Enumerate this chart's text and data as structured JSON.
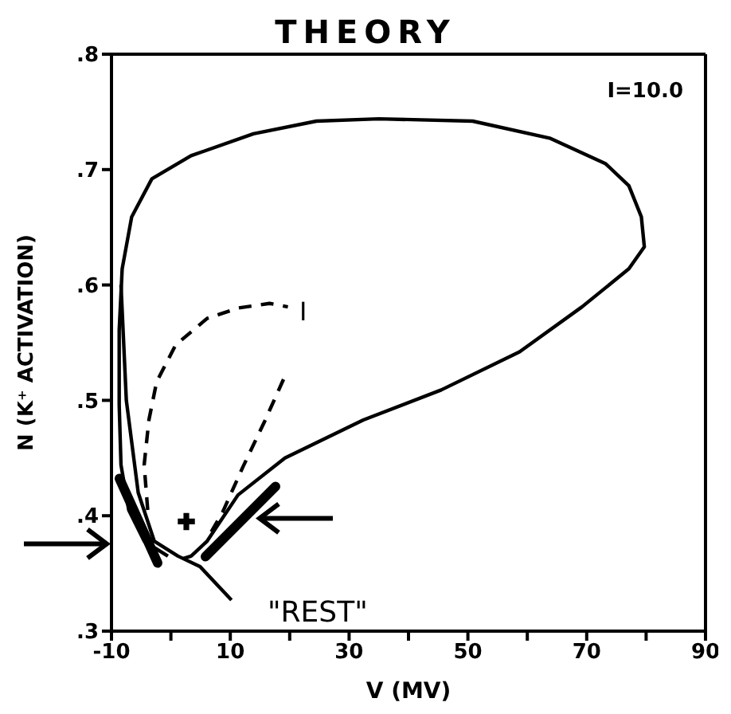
{
  "chart_data": {
    "type": "line",
    "title": "THEORY",
    "xlabel": "V (MV)",
    "ylabel": "N (K⁺ ACTIVATION)",
    "xlim": [
      -10,
      90
    ],
    "ylim": [
      0.3,
      0.8
    ],
    "xticks": [
      -10,
      {
        "value": 0,
        "label": null
      },
      10,
      {
        "value": 20,
        "label": null
      },
      30,
      {
        "value": 40,
        "label": null
      },
      50,
      {
        "value": 60,
        "label": null
      },
      70,
      {
        "value": 80,
        "label": null
      },
      90
    ],
    "yticks": [
      {
        "value": 0.3,
        "label": ".3"
      },
      {
        "value": 0.4,
        "label": ".4"
      },
      {
        "value": 0.5,
        "label": ".5"
      },
      {
        "value": 0.6,
        "label": ".6"
      },
      {
        "value": 0.7,
        "label": ".7"
      },
      {
        "value": 0.8,
        "label": ".8"
      }
    ],
    "marker": "none",
    "grid": false,
    "legend": false,
    "annotations": [
      "I=10.0",
      "I",
      "\"REST\""
    ],
    "series": [
      {
        "color": "#000000",
        "line_style": "solid",
        "x": [
          2.1,
          3.4,
          6.1,
          11.3,
          19.2,
          32.4,
          45.5,
          58.7,
          69.2,
          77.1,
          79.7,
          79.2,
          77.1,
          73.2,
          63.9,
          50.8,
          35,
          24.5,
          13.9,
          3.4,
          -3.2,
          -6.6,
          -8.2,
          -8.7,
          -8.7,
          -8.4,
          -7.1,
          -4.5,
          -0.5
        ],
        "values": [
          0.363,
          0.365,
          0.378,
          0.418,
          0.45,
          0.483,
          0.509,
          0.542,
          0.581,
          0.614,
          0.633,
          0.659,
          0.686,
          0.705,
          0.727,
          0.742,
          0.744,
          0.742,
          0.731,
          0.712,
          0.692,
          0.659,
          0.614,
          0.561,
          0.496,
          0.444,
          0.405,
          0.378,
          0.365
        ]
      },
      {
        "color": "#000000",
        "line_style": "dashed",
        "x": [
          -3.9,
          -4.5,
          -3.7,
          -2.4,
          0.8,
          6.1,
          11.3,
          16.6,
          19.7
        ],
        "values": [
          0.405,
          0.444,
          0.483,
          0.516,
          0.548,
          0.571,
          0.58,
          0.584,
          0.581
        ]
      },
      {
        "color": "#000000",
        "line_style": "dashed",
        "x": [
          6.8,
          8.7,
          12.1,
          15.8,
          19.2
        ],
        "values": [
          0.386,
          0.403,
          0.442,
          0.482,
          0.521
        ]
      },
      {
        "color": "#000000",
        "line_style": "solid",
        "x": [
          -8.4,
          -7.5,
          -5.5,
          -2.8,
          1.2,
          4.9,
          10.2
        ],
        "values": [
          0.6,
          0.5,
          0.42,
          0.378,
          0.365,
          0.356,
          0.327
        ]
      },
      {
        "type": "scatter",
        "color": "#000000",
        "marker": "cross",
        "x": [
          2.6
        ],
        "values": [
          0.395
        ]
      }
    ]
  }
}
